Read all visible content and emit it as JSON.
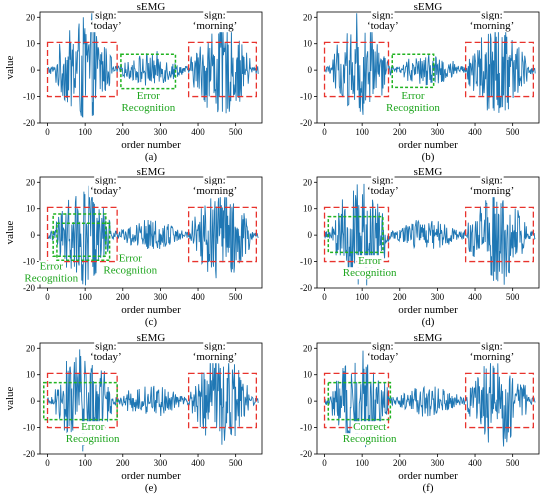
{
  "chart_data": [
    {
      "panel": "(a)",
      "type": "line",
      "title": "sEMG",
      "xlabel": "order number",
      "ylabel": "value",
      "xlim": [
        -20,
        570
      ],
      "ylim": [
        -20,
        22
      ],
      "xticks": [
        "0",
        "100",
        "200",
        "300",
        "400",
        "500"
      ],
      "yticks": [
        "-20",
        "-10",
        "0",
        "10",
        "20"
      ],
      "series": [
        {
          "color": "#1f77b4",
          "x_range": [
            0,
            560
          ],
          "amplitude_bursts": [
            {
              "from": 20,
              "to": 170,
              "peak": 20
            },
            {
              "from": 190,
              "to": 360,
              "peak": 6
            },
            {
              "from": 380,
              "to": 540,
              "peak": 18
            }
          ]
        }
      ],
      "labels": [
        {
          "text": "sign:",
          "x": 155,
          "y": 19.5
        },
        {
          "text": "‘today’",
          "x": 155,
          "y": 15.5
        },
        {
          "text": "sign:",
          "x": 445,
          "y": 19.5
        },
        {
          "text": "‘morning’",
          "x": 445,
          "y": 15.5
        }
      ],
      "boxes": [
        {
          "style": "red-dashed",
          "x": [
            0,
            185
          ],
          "y": [
            -10,
            10.5
          ],
          "text": [],
          "text_at": [
            0,
            0
          ]
        },
        {
          "style": "green-dashed",
          "x": [
            195,
            340
          ],
          "y": [
            -7,
            6
          ],
          "text": [
            "Error",
            "Recognition"
          ],
          "text_at": [
            268,
            -11
          ]
        },
        {
          "style": "red-dashed",
          "x": [
            375,
            555
          ],
          "y": [
            -10,
            10.5
          ],
          "text": [],
          "text_at": [
            0,
            0
          ]
        }
      ]
    },
    {
      "panel": "(b)",
      "type": "line",
      "title": "sEMG",
      "xlabel": "order number",
      "ylabel": "",
      "xlim": [
        -20,
        570
      ],
      "ylim": [
        -20,
        22
      ],
      "xticks": [
        "0",
        "100",
        "200",
        "300",
        "400",
        "500"
      ],
      "yticks": [
        "-20",
        "-10",
        "0",
        "10",
        "20"
      ],
      "series": [
        {
          "color": "#1f77b4",
          "x_range": [
            0,
            560
          ],
          "amplitude_bursts": [
            {
              "from": 20,
              "to": 170,
              "peak": 20
            },
            {
              "from": 190,
              "to": 360,
              "peak": 6
            },
            {
              "from": 380,
              "to": 540,
              "peak": 18
            }
          ]
        }
      ],
      "labels": [
        {
          "text": "sign:",
          "x": 155,
          "y": 19.5
        },
        {
          "text": "‘today’",
          "x": 155,
          "y": 15.5
        },
        {
          "text": "sign:",
          "x": 445,
          "y": 19.5
        },
        {
          "text": "‘morning’",
          "x": 445,
          "y": 15.5
        }
      ],
      "boxes": [
        {
          "style": "red-dashed",
          "x": [
            0,
            170
          ],
          "y": [
            -10,
            10.5
          ],
          "text": [],
          "text_at": [
            0,
            0
          ]
        },
        {
          "style": "green-dashed",
          "x": [
            180,
            290
          ],
          "y": [
            -6.5,
            6
          ],
          "text": [
            "Error",
            "Recognition"
          ],
          "text_at": [
            235,
            -11
          ]
        },
        {
          "style": "red-dashed",
          "x": [
            375,
            555
          ],
          "y": [
            -10,
            10.5
          ],
          "text": [],
          "text_at": [
            0,
            0
          ]
        }
      ]
    },
    {
      "panel": "(c)",
      "type": "line",
      "title": "sEMG",
      "xlabel": "order number",
      "ylabel": "value",
      "xlim": [
        -20,
        570
      ],
      "ylim": [
        -20,
        22
      ],
      "xticks": [
        "0",
        "100",
        "200",
        "300",
        "400",
        "500"
      ],
      "yticks": [
        "-20",
        "-10",
        "0",
        "10",
        "20"
      ],
      "series": [
        {
          "color": "#1f77b4",
          "x_range": [
            0,
            560
          ],
          "amplitude_bursts": [
            {
              "from": 20,
              "to": 170,
              "peak": 20
            },
            {
              "from": 190,
              "to": 360,
              "peak": 6
            },
            {
              "from": 380,
              "to": 540,
              "peak": 18
            }
          ]
        }
      ],
      "labels": [
        {
          "text": "sign:",
          "x": 155,
          "y": 19.5
        },
        {
          "text": "‘today’",
          "x": 155,
          "y": 15.5
        },
        {
          "text": "sign:",
          "x": 445,
          "y": 19.5
        },
        {
          "text": "‘morning’",
          "x": 445,
          "y": 15.5
        }
      ],
      "boxes": [
        {
          "style": "red-dashed",
          "x": [
            0,
            185
          ],
          "y": [
            -10,
            10.5
          ],
          "text": [],
          "text_at": [
            0,
            0
          ]
        },
        {
          "style": "green-dashed",
          "x": [
            15,
            155
          ],
          "y": [
            -8,
            8
          ],
          "text": [
            "Error",
            "Recognition"
          ],
          "text_at": [
            10,
            -13
          ]
        },
        {
          "style": "green-dashed",
          "x": [
            25,
            165
          ],
          "y": [
            -9.5,
            4.5
          ],
          "text": [
            "Error",
            "Recognition"
          ],
          "text_at": [
            220,
            -10
          ]
        },
        {
          "style": "red-dashed",
          "x": [
            375,
            555
          ],
          "y": [
            -10,
            10.5
          ],
          "text": [],
          "text_at": [
            0,
            0
          ]
        }
      ]
    },
    {
      "panel": "(d)",
      "type": "line",
      "title": "sEMG",
      "xlabel": "order number",
      "ylabel": "",
      "xlim": [
        -20,
        570
      ],
      "ylim": [
        -20,
        22
      ],
      "xticks": [
        "0",
        "100",
        "200",
        "300",
        "400",
        "500"
      ],
      "yticks": [
        "-20",
        "-10",
        "0",
        "10",
        "20"
      ],
      "series": [
        {
          "color": "#1f77b4",
          "x_range": [
            0,
            560
          ],
          "amplitude_bursts": [
            {
              "from": 20,
              "to": 170,
              "peak": 20
            },
            {
              "from": 190,
              "to": 360,
              "peak": 6
            },
            {
              "from": 380,
              "to": 540,
              "peak": 18
            }
          ]
        }
      ],
      "labels": [
        {
          "text": "sign:",
          "x": 155,
          "y": 19.5
        },
        {
          "text": "‘today’",
          "x": 155,
          "y": 15.5
        },
        {
          "text": "sign:",
          "x": 445,
          "y": 19.5
        },
        {
          "text": "‘morning’",
          "x": 445,
          "y": 15.5
        }
      ],
      "boxes": [
        {
          "style": "red-dashed",
          "x": [
            0,
            170
          ],
          "y": [
            -10,
            10.5
          ],
          "text": [],
          "text_at": [
            0,
            0
          ]
        },
        {
          "style": "green-dashed",
          "x": [
            10,
            155
          ],
          "y": [
            -6.5,
            7
          ],
          "text": [
            "Error",
            "Recognition"
          ],
          "text_at": [
            120,
            -11
          ]
        },
        {
          "style": "red-dashed",
          "x": [
            375,
            555
          ],
          "y": [
            -10,
            10.5
          ],
          "text": [],
          "text_at": [
            0,
            0
          ]
        }
      ]
    },
    {
      "panel": "(e)",
      "type": "line",
      "title": "sEMG",
      "xlabel": "order number",
      "ylabel": "value",
      "xlim": [
        -20,
        570
      ],
      "ylim": [
        -20,
        22
      ],
      "xticks": [
        "0",
        "100",
        "200",
        "300",
        "400",
        "500"
      ],
      "yticks": [
        "-20",
        "-10",
        "0",
        "10",
        "20"
      ],
      "series": [
        {
          "color": "#1f77b4",
          "x_range": [
            0,
            560
          ],
          "amplitude_bursts": [
            {
              "from": 20,
              "to": 170,
              "peak": 20
            },
            {
              "from": 190,
              "to": 360,
              "peak": 6
            },
            {
              "from": 380,
              "to": 540,
              "peak": 18
            }
          ]
        }
      ],
      "labels": [
        {
          "text": "sign:",
          "x": 155,
          "y": 19.5
        },
        {
          "text": "‘today’",
          "x": 155,
          "y": 15.5
        },
        {
          "text": "sign:",
          "x": 445,
          "y": 19.5
        },
        {
          "text": "‘morning’",
          "x": 445,
          "y": 15.5
        }
      ],
      "boxes": [
        {
          "style": "red-dashed",
          "x": [
            0,
            185
          ],
          "y": [
            -10,
            10.5
          ],
          "text": [],
          "text_at": [
            0,
            0
          ]
        },
        {
          "style": "green-dashed",
          "x": [
            -10,
            185
          ],
          "y": [
            -7,
            7
          ],
          "text": [
            "Error",
            "Recognition"
          ],
          "text_at": [
            120,
            -11
          ]
        },
        {
          "style": "red-dashed",
          "x": [
            375,
            555
          ],
          "y": [
            -10,
            10.5
          ],
          "text": [],
          "text_at": [
            0,
            0
          ]
        }
      ]
    },
    {
      "panel": "(f)",
      "type": "line",
      "title": "sEMG",
      "xlabel": "order number",
      "ylabel": "",
      "xlim": [
        -20,
        570
      ],
      "ylim": [
        -20,
        22
      ],
      "xticks": [
        "0",
        "100",
        "200",
        "300",
        "400",
        "500"
      ],
      "yticks": [
        "-20",
        "-10",
        "0",
        "10",
        "20"
      ],
      "series": [
        {
          "color": "#1f77b4",
          "x_range": [
            0,
            560
          ],
          "amplitude_bursts": [
            {
              "from": 20,
              "to": 170,
              "peak": 20
            },
            {
              "from": 190,
              "to": 360,
              "peak": 6
            },
            {
              "from": 380,
              "to": 540,
              "peak": 18
            }
          ]
        }
      ],
      "labels": [
        {
          "text": "sign:",
          "x": 155,
          "y": 19.5
        },
        {
          "text": "‘today’",
          "x": 155,
          "y": 15.5
        },
        {
          "text": "sign:",
          "x": 445,
          "y": 19.5
        },
        {
          "text": "‘morning’",
          "x": 445,
          "y": 15.5
        }
      ],
      "boxes": [
        {
          "style": "red-dashed",
          "x": [
            0,
            170
          ],
          "y": [
            -10,
            10.5
          ],
          "text": [],
          "text_at": [
            0,
            0
          ]
        },
        {
          "style": "green-dashed",
          "x": [
            10,
            175
          ],
          "y": [
            -7,
            7
          ],
          "text": [
            "Correct",
            "Recognition"
          ],
          "text_at": [
            120,
            -11
          ]
        },
        {
          "style": "red-dashed",
          "x": [
            375,
            555
          ],
          "y": [
            -10,
            10.5
          ],
          "text": [],
          "text_at": [
            0,
            0
          ]
        }
      ]
    }
  ],
  "colors": {
    "signal": "#1f77b4",
    "red_box": "#e8332d",
    "green_box": "#21b321",
    "green_text": "#1ea51e"
  }
}
